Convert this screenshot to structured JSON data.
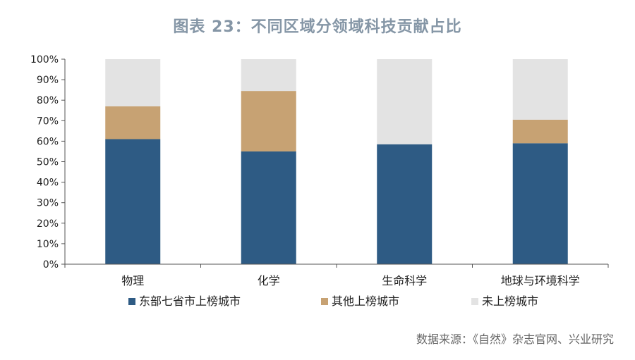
{
  "title": "图表 23：不同区域分领域科技贡献占比",
  "source": "数据来源：《自然》杂志官网、兴业研究",
  "chart_data": {
    "type": "bar",
    "stacked": true,
    "categories": [
      "物理",
      "化学",
      "生命科学",
      "地球与环境科学"
    ],
    "series": [
      {
        "name": "东部七省市上榜城市",
        "color": "#2e5b84",
        "values": [
          0.61,
          0.55,
          0.585,
          0.59
        ]
      },
      {
        "name": "其他上榜城市",
        "color": "#c7a273",
        "values": [
          0.16,
          0.295,
          0.0,
          0.115
        ]
      },
      {
        "name": "未上榜城市",
        "color": "#e3e3e3",
        "values": [
          0.23,
          0.155,
          0.415,
          0.295
        ]
      }
    ],
    "ylim": [
      0,
      1
    ],
    "yticks": [
      "0%",
      "10%",
      "20%",
      "30%",
      "40%",
      "50%",
      "60%",
      "70%",
      "80%",
      "90%",
      "100%"
    ],
    "grid": false,
    "legend_position": "bottom"
  }
}
